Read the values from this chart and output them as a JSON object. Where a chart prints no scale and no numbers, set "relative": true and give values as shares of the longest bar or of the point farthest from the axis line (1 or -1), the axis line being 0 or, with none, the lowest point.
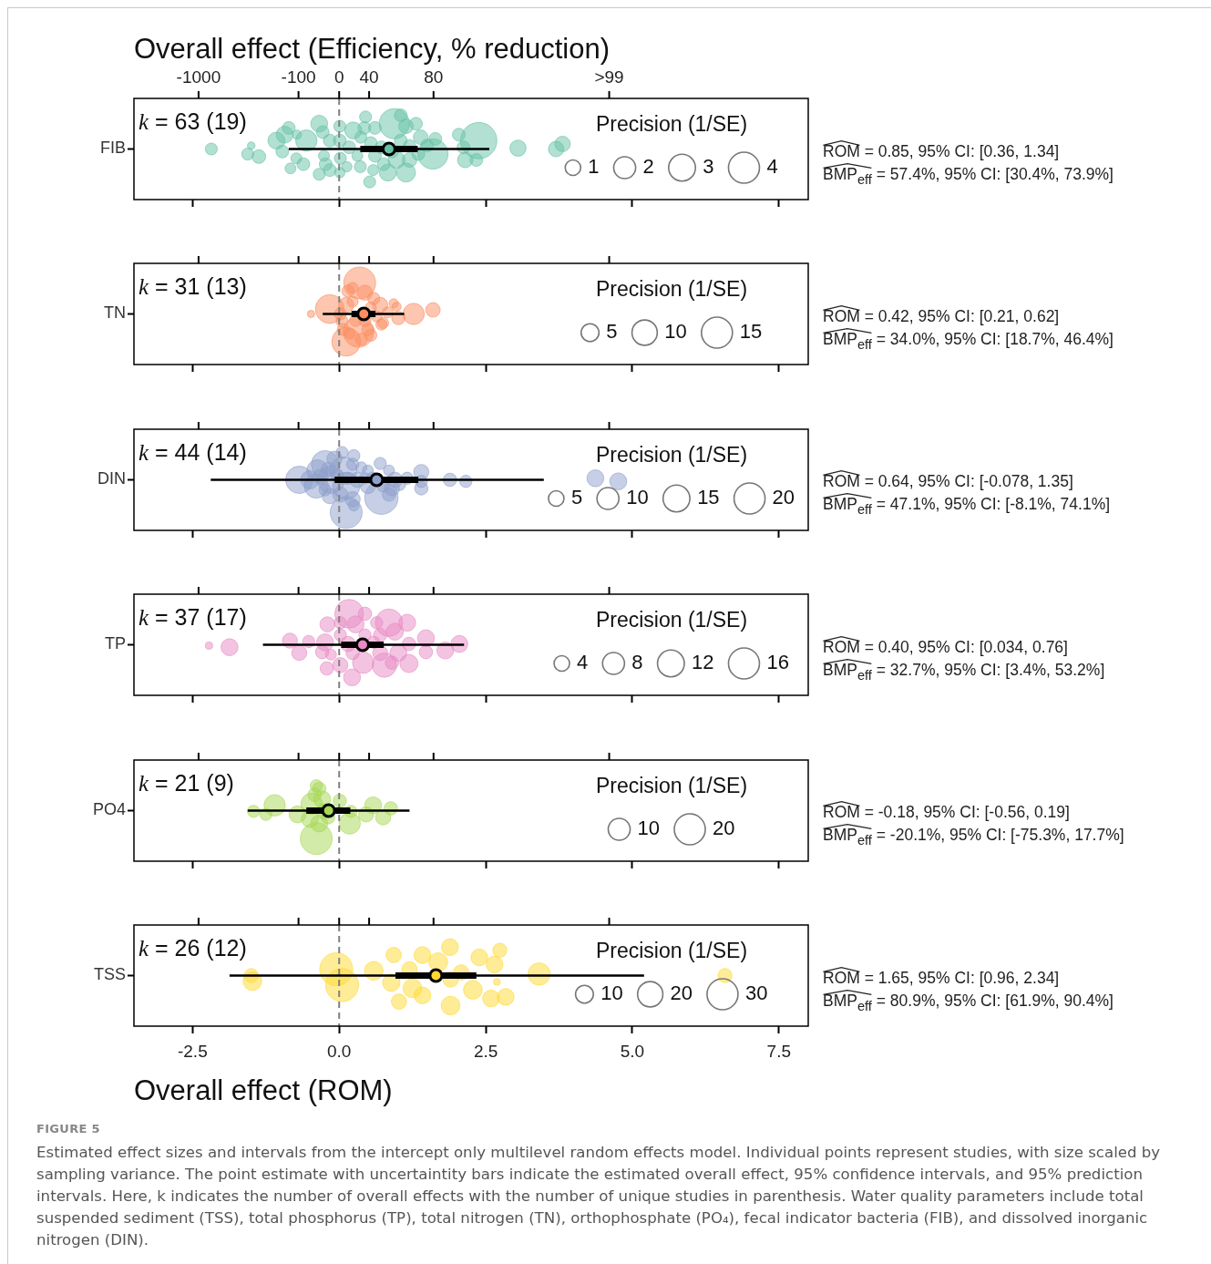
{
  "chart_data": [
    {
      "type": "bubble",
      "relative": true,
      "tick_labels": false,
      "title": "Overall effect (Efficiency, % reduction)",
      "xlim": [
        -3.5,
        8.0
      ],
      "xticks": [
        -2.5,
        0,
        2.5,
        5,
        7.5
      ],
      "series": [
        {
          "color": "#66c2a5",
          "x": [
            -2.18,
            -1.56,
            -1.5,
            -1.37,
            -1.07,
            -0.93,
            -0.97,
            -0.72,
            -0.56,
            -0.73,
            -0.61,
            -0.83,
            -0.34,
            -0.28,
            -0.16,
            -0.26,
            -0.16,
            -0.34,
            0.01,
            0.01,
            0.02,
            0.01,
            0.24,
            0.13,
            0.45,
            0.43,
            0.36,
            0.52,
            0.61,
            0.61,
            0.58,
            0.94,
            0.83,
            1.14,
            1.05,
            1.14,
            0.98,
            1.2,
            1.39,
            1.35,
            1.6,
            1.64,
            2.04,
            2.15,
            2.38,
            2.12,
            2.34,
            3.05,
            3.7,
            3.81,
            0.76,
            0.31,
            0.72,
            1.2,
            0.9,
            1.31,
            -0.86,
            -0.23,
            0.17,
            1.05,
            0.54,
            1.5,
            0.37
          ],
          "values": [
            0.6,
            0.54,
            0.64,
            0.51,
            0.7,
            0.77,
            0.57,
            0.77,
            0.7,
            0.49,
            0.42,
            0.37,
            0.9,
            0.8,
            0.7,
            0.52,
            0.35,
            0.3,
            0.87,
            0.7,
            0.49,
            0.32,
            0.82,
            0.39,
            0.98,
            0.85,
            0.39,
            0.21,
            0.85,
            0.52,
            0.35,
            0.9,
            0.32,
            0.87,
            0.7,
            0.32,
            0.47,
            0.47,
            0.74,
            0.54,
            0.54,
            0.72,
            0.77,
            0.47,
            0.7,
            0.62,
            0.47,
            0.61,
            0.6,
            0.66,
            0.42,
            0.52,
            0.62,
            0.64,
            0.57,
            0.9,
            0.85,
            0.42,
            0.62,
            1,
            0.67,
            0.64,
            0.74
          ],
          "sizes": [
            0.6,
            0.6,
            0.24,
            0.78,
            1.2,
            1.2,
            0.68,
            0.35,
            1.9,
            0.5,
            0.68,
            0.5,
            1.2,
            0.68,
            0.68,
            0.5,
            0.68,
            0.6,
            0.6,
            0.68,
            0.6,
            0.45,
            1.2,
            0.45,
            0.6,
            0.68,
            0.6,
            0.6,
            0.68,
            0.68,
            0.5,
            3.8,
            1.2,
            0.89,
            0.68,
            1.5,
            1.2,
            0.89,
            0.89,
            0.68,
            3.8,
            0.68,
            0.68,
            1.0,
            5.5,
            0.68,
            0.68,
            1.1,
            1.0,
            1.0,
            0.68,
            0.5,
            0.68,
            0.6,
            0.68,
            0.68,
            0.68,
            0.68,
            0.68,
            0.68,
            0.68,
            0.68,
            0.6
          ]
        },
        {
          "type": "line",
          "color": "#000000",
          "x": [
            -0.86,
            2.56
          ],
          "values": [
            0.6,
            0.6
          ]
        },
        {
          "type": "scatter",
          "color": "#66c2a5",
          "x": [
            0.85
          ],
          "values": [
            0.6
          ],
          "xerrors": [
            [
              0.36,
              1.34
            ]
          ]
        }
      ],
      "ref_lines": [
        {
          "axis": "x",
          "value": 0,
          "line_style": "dashed",
          "color": "#808080"
        }
      ],
      "legend_title": "Precision (1/SE)",
      "size_legend": [
        1,
        2,
        3,
        4
      ],
      "annotations": [
        "k = 63 (19)",
        "ROM = 0.85, 95% CI: [0.36, 1.34]",
        "BMP$_{eff}$ = 57.4%, 95% CI: [30.4%, 73.9%]",
        "FIB",
        "-1000",
        "-100",
        "0",
        "40",
        "80",
        ">99"
      ]
    },
    {
      "type": "bubble",
      "relative": true,
      "tick_labels": false,
      "xlim": [
        -3.5,
        8.0
      ],
      "xticks": [
        -2.5,
        0,
        2.5,
        5,
        7.5
      ],
      "series": [
        {
          "color": "#fc8d62",
          "x": [
            -0.48,
            -0.16,
            0.35,
            0.12,
            0.33,
            0.15,
            0.44,
            0.59,
            0.7,
            0.12,
            0.28,
            0.49,
            0.75,
            0.64,
            0.98,
            1.01,
            1.27,
            1.6,
            0.05,
            0.07,
            0.38,
            0.23,
            0.54,
            0.83,
            0.72,
            0.44,
            0.02,
            0.23,
            0.54,
            0.93,
            0.18
          ],
          "values": [
            0.62,
            0.68,
            1,
            0.28,
            0.4,
            0.9,
            0.88,
            0.81,
            0.73,
            0.73,
            0.54,
            0.43,
            0.51,
            0.59,
            0.71,
            0.57,
            0.62,
            0.67,
            0.53,
            0.43,
            0.31,
            0.77,
            0.7,
            0.64,
            0.49,
            0.54,
            0.62,
            0.94,
            0.36,
            0.75,
            0.38
          ],
          "sizes": [
            0.83,
            13,
            15.9,
            13,
            14.5,
            2.3,
            3.6,
            2.3,
            3.6,
            3.6,
            2.3,
            2.3,
            1.9,
            1.9,
            1.3,
            2.8,
            7.1,
            3.3,
            2.3,
            2.3,
            2.3,
            1.9,
            1.9,
            1.9,
            1.9,
            2.3,
            2.3,
            1.9,
            2.3,
            1.3,
            1.9
          ]
        },
        {
          "type": "line",
          "color": "#000000",
          "x": [
            -0.28,
            1.11
          ],
          "values": [
            0.62,
            0.62
          ]
        },
        {
          "type": "scatter",
          "color": "#fc8d62",
          "x": [
            0.42
          ],
          "values": [
            0.62
          ],
          "xerrors": [
            [
              0.21,
              0.62
            ]
          ]
        }
      ],
      "ref_lines": [
        {
          "axis": "x",
          "value": 0,
          "line_style": "dashed",
          "color": "#808080"
        }
      ],
      "legend_title": "Precision (1/SE)",
      "size_legend": [
        5,
        10,
        15
      ],
      "annotations": [
        "k = 31 (13)",
        "ROM = 0.42, 95% CI: [0.21, 0.62]",
        "BMP$_{eff}$ = 34.0%, 95% CI: [18.7%, 46.4%]",
        "TN"
      ]
    },
    {
      "type": "bubble",
      "relative": true,
      "tick_labels": false,
      "xlim": [
        -3.5,
        8.0
      ],
      "xticks": [
        -2.5,
        0,
        2.5,
        5,
        7.5
      ],
      "series": [
        {
          "color": "#8da0cb",
          "x": [
            -0.68,
            -0.37,
            -0.24,
            -0.39,
            -0.14,
            0.07,
            0.12,
            0.12,
            0.05,
            0.25,
            0.23,
            -0.16,
            0.49,
            0.7,
            0.85,
            0.49,
            0.72,
            0.9,
            1.16,
            1.4,
            1.4,
            1.4,
            1.89,
            2.16,
            4.37,
            4.76,
            -0.5,
            -0.08,
            0.31,
            0.23,
            0.02,
            -0.24,
            0.44,
            0.95,
            0.75,
            -0.32,
            -0.03,
            0.15,
            0.38,
            0.57,
            0.85,
            1.03,
            0.25,
            -0.19
          ],
          "values": [
            0.65,
            0.77,
            0.85,
            0.57,
            0.65,
            0.77,
            0.57,
            0.23,
            1,
            0.96,
            0.4,
            0.44,
            0.77,
            0.86,
            0.77,
            0.57,
            0.42,
            0.54,
            0.67,
            0.75,
            0.54,
            0.63,
            0.65,
            0.63,
            0.67,
            0.63,
            0.65,
            0.92,
            0.65,
            0.85,
            0.46,
            0.52,
            0.67,
            0.65,
            0.57,
            0.69,
            0.71,
            0.67,
            0.81,
            0.67,
            0.46,
            0.59,
            0.32,
            0.79
          ],
          "sizes": [
            15.6,
            9.5,
            15.6,
            12.2,
            15.6,
            15.6,
            15.6,
            21.2,
            3.1,
            3.1,
            4.8,
            4.8,
            2.5,
            3.1,
            2.5,
            4.8,
            23.2,
            4.8,
            3.1,
            4.8,
            3.7,
            3.1,
            3.7,
            3.1,
            6.0,
            6.0,
            6.9,
            4.8,
            4.8,
            3.1,
            4.8,
            3.1,
            2.5,
            4.8,
            3.1,
            4.8,
            3.1,
            3.1,
            2.5,
            3.1,
            3.7,
            3.1,
            2.5,
            3.7
          ]
        },
        {
          "type": "line",
          "color": "#000000",
          "x": [
            -2.19,
            3.49
          ],
          "values": [
            0.65,
            0.65
          ]
        },
        {
          "type": "scatter",
          "color": "#8da0cb",
          "x": [
            0.64
          ],
          "values": [
            0.65
          ],
          "xerrors": [
            [
              -0.078,
              1.35
            ]
          ]
        }
      ],
      "ref_lines": [
        {
          "axis": "x",
          "value": 0,
          "line_style": "dashed",
          "color": "#808080"
        }
      ],
      "legend_title": "Precision (1/SE)",
      "size_legend": [
        5,
        10,
        15,
        20
      ],
      "annotations": [
        "k = 44 (14)",
        "ROM = 0.64, 95% CI: [-0.078, 1.35]",
        "BMP$_{eff}$ = 47.1%, 95% CI: [-8.1%, 74.1%]",
        "DIN"
      ]
    },
    {
      "type": "bubble",
      "relative": true,
      "tick_labels": false,
      "xlim": [
        -3.5,
        8.0
      ],
      "xticks": [
        -2.5,
        0,
        2.5,
        5,
        7.5
      ],
      "series": [
        {
          "color": "#e78ac3",
          "x": [
            -2.22,
            -1.87,
            -0.84,
            -0.68,
            -0.52,
            -0.2,
            -0.24,
            -0.29,
            -0.21,
            -0.14,
            0.17,
            0.02,
            0.02,
            0.22,
            0.28,
            0.44,
            0.41,
            0.64,
            0.85,
            0.95,
            0.77,
            0.7,
            1.01,
            0.9,
            1.16,
            1.19,
            1.19,
            1.48,
            1.48,
            1.81,
            2.05,
            0.15,
            0.23,
            0.59,
            0.02,
            0.44,
            0.7
          ],
          "values": [
            0.61,
            0.59,
            0.67,
            0.52,
            0.66,
            0.87,
            0.65,
            0.53,
            0.33,
            0.5,
            1,
            0.89,
            0.37,
            0.22,
            0.87,
            0.74,
            0.4,
            0.89,
            0.89,
            0.78,
            0.37,
            0.52,
            0.52,
            0.4,
            0.89,
            0.39,
            0.63,
            0.7,
            0.53,
            0.55,
            0.63,
            0.63,
            0.52,
            0.65,
            0.74,
            1,
            0.74
          ],
          "sizes": [
            0.89,
            4.8,
            3.8,
            3.8,
            2.5,
            3.8,
            4.8,
            3.0,
            3.0,
            2.0,
            13.8,
            2.5,
            3.8,
            4.8,
            4.8,
            2.5,
            7.6,
            2.5,
            12.5,
            4.8,
            9.8,
            3.8,
            4.8,
            3.0,
            4.8,
            5.5,
            3.0,
            4.8,
            3.0,
            4.8,
            4.8,
            3.8,
            3.0,
            2.5,
            2.5,
            3.0,
            3.0
          ]
        },
        {
          "type": "line",
          "color": "#000000",
          "x": [
            -1.3,
            2.13
          ],
          "values": [
            0.62,
            0.62
          ]
        },
        {
          "type": "scatter",
          "color": "#e78ac3",
          "x": [
            0.4
          ],
          "values": [
            0.62
          ],
          "xerrors": [
            [
              0.034,
              0.76
            ]
          ]
        }
      ],
      "ref_lines": [
        {
          "axis": "x",
          "value": 0,
          "line_style": "dashed",
          "color": "#808080"
        }
      ],
      "legend_title": "Precision (1/SE)",
      "size_legend": [
        4,
        8,
        12,
        16
      ],
      "annotations": [
        "k = 37 (17)",
        "ROM = 0.40, 95% CI: [0.034, 0.76]",
        "BMP$_{eff}$ = 32.7%, 95% CI: [3.4%, 53.2%]",
        "TP"
      ]
    },
    {
      "type": "bubble",
      "relative": true,
      "tick_labels": false,
      "xlim": [
        -3.5,
        8.0
      ],
      "xticks": [
        -2.5,
        0,
        2.5,
        5,
        7.5
      ],
      "series": [
        {
          "color": "#a6d854",
          "x": [
            -1.46,
            -1.25,
            -1.1,
            -0.71,
            -0.39,
            -0.34,
            -0.47,
            -0.29,
            -0.39,
            -0.34,
            -0.5,
            0.01,
            0.18,
            0.2,
            0.46,
            0.58,
            0.75,
            0.88,
            -0.26,
            -0.42,
            -0.19
          ],
          "values": [
            0.66,
            0.62,
            0.74,
            0.62,
            1,
            0.96,
            0.76,
            0.82,
            0.3,
            0.5,
            0.56,
            0.8,
            0.5,
            0.66,
            0.62,
            0.74,
            0.58,
            0.7,
            0.66,
            0.88,
            0.58
          ],
          "sizes": [
            3.1,
            3.1,
            9.5,
            6.0,
            3.1,
            3.7,
            9.5,
            6.0,
            21.2,
            6.0,
            6.0,
            3.7,
            9.5,
            3.1,
            4.8,
            6.0,
            4.8,
            3.7,
            4.8,
            3.7,
            3.7
          ]
        },
        {
          "type": "line",
          "color": "#000000",
          "x": [
            -1.56,
            1.2
          ],
          "values": [
            0.67,
            0.67
          ]
        },
        {
          "type": "scatter",
          "color": "#a6d854",
          "x": [
            -0.18
          ],
          "values": [
            0.67
          ],
          "xerrors": [
            [
              -0.56,
              0.19
            ]
          ]
        }
      ],
      "ref_lines": [
        {
          "axis": "x",
          "value": 0,
          "line_style": "dashed",
          "color": "#808080"
        }
      ],
      "legend_title": "Precision (1/SE)",
      "size_legend": [
        10,
        20
      ],
      "annotations": [
        "k = 21 (9)",
        "ROM = -0.18, 95% CI: [-0.56, 0.19]",
        "BMP$_{eff}$ = -20.1%, 95% CI: [-75.3%, 17.7%]",
        "PO4"
      ]
    },
    {
      "type": "bubble",
      "relative": true,
      "xlabel": "Overall effect (ROM)",
      "xlim": [
        -3.5,
        8.0
      ],
      "xticks": [
        -2.5,
        {
          "value": 0,
          "label": "0.0"
        },
        2.5,
        {
          "value": 5,
          "label": "5.0"
        },
        7.5
      ],
      "series": [
        {
          "color": "#ffd92f",
          "x": [
            -1.5,
            -1.48,
            -0.05,
            0.05,
            0.59,
            0.93,
            0.89,
            1.2,
            1.25,
            1.02,
            1.42,
            1.42,
            1.69,
            1.89,
            1.9,
            1.9,
            2.08,
            2.28,
            2.39,
            2.59,
            2.65,
            2.74,
            2.69,
            2.84,
            3.41,
            6.58
          ],
          "values": [
            0.64,
            0.57,
            0.72,
            0.52,
            0.7,
            0.9,
            0.55,
            0.72,
            0.48,
            0.31,
            0.9,
            0.39,
            0.81,
            1,
            0.59,
            0.26,
            0.68,
            0.46,
            0.87,
            0.35,
            0.78,
            0.96,
            0.56,
            0.37,
            0.66,
            0.64
          ],
          "sizes": [
            6.2,
            11,
            34,
            34,
            11,
            7.3,
            9.6,
            7.3,
            11,
            7.3,
            8.8,
            8.8,
            11,
            8.8,
            7.3,
            11,
            7.3,
            11,
            8.8,
            8.8,
            8.8,
            6.2,
            1.5,
            8.8,
            15.5,
            6.2
          ]
        },
        {
          "type": "line",
          "color": "#000000",
          "x": [
            -1.87,
            5.2
          ],
          "values": [
            0.64,
            0.64
          ]
        },
        {
          "type": "scatter",
          "color": "#ffd92f",
          "x": [
            1.65
          ],
          "values": [
            0.64
          ],
          "xerrors": [
            [
              0.96,
              2.34
            ]
          ]
        }
      ],
      "ref_lines": [
        {
          "axis": "x",
          "value": 0,
          "line_style": "dashed",
          "color": "#808080"
        }
      ],
      "legend_title": "Precision (1/SE)",
      "size_legend": [
        10,
        20,
        30
      ],
      "annotations": [
        "k = 26 (12)",
        "ROM = 1.65, 95% CI: [0.96, 2.34]",
        "BMP$_{eff}$ = 80.9%, 95% CI: [61.9%, 90.4%]",
        "TSS",
        "FIGURE 5",
        "Estimated effect sizes and intervals from the intercept only multilevel random effects model. Individual points represent studies, with size scaled by sampling variance. The point estimate with uncertaintity bars indicate the estimated overall effect, 95% confidence intervals, and 95% prediction intervals. Here, k indicates the number of overall effects with the number of unique studies in parenthesis. Water quality parameters include total suspended sediment (TSS), total phosphorus (TP), total nitrogen (TN), orthophosphate (PO₄), fecal indicator bacteria (FIB), and dissolved inorganic nitrogen (DIN)."
      ]
    }
  ]
}
